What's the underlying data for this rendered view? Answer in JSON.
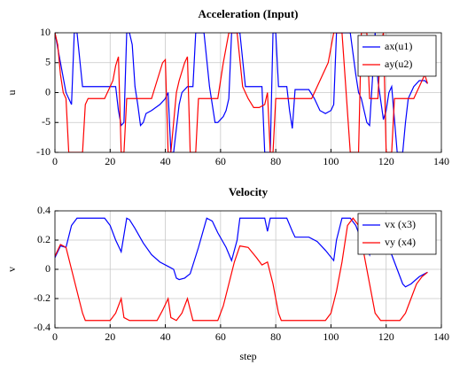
{
  "chart_data": [
    {
      "type": "line",
      "title": "Acceleration (Input)",
      "ylabel": "u",
      "xlim": [
        0,
        140
      ],
      "ylim": [
        -10,
        10
      ],
      "xticks": [
        0,
        20,
        40,
        60,
        80,
        100,
        120,
        140
      ],
      "yticks": [
        -10,
        -5,
        0,
        5,
        10
      ],
      "grid": true,
      "legend": "upper right",
      "series": [
        {
          "name": "ax(u1)",
          "color": "#0000ff",
          "x": [
            0,
            2,
            4,
            6,
            7,
            8,
            10,
            22,
            23,
            24,
            25,
            26,
            27,
            28,
            29,
            30,
            31,
            32,
            33,
            35,
            38,
            40,
            41,
            42,
            43,
            45,
            46,
            48,
            50,
            51,
            54,
            56,
            57,
            58,
            59,
            61,
            62,
            63,
            64,
            67,
            69,
            75,
            76,
            78,
            79,
            80,
            81,
            84,
            85,
            86,
            87,
            92,
            94,
            96,
            98,
            100,
            101,
            102,
            107,
            109,
            110,
            111,
            113,
            114,
            115,
            116,
            117,
            119,
            120,
            121,
            122,
            124,
            126,
            127,
            128,
            130,
            132,
            134,
            135
          ],
          "values": [
            10,
            5,
            0,
            -2,
            10,
            10,
            1,
            1,
            -3,
            -5.5,
            -5,
            10,
            10,
            8,
            1,
            -2,
            -5.5,
            -5,
            -3.5,
            -3,
            -2,
            -1,
            0,
            -10,
            -10,
            -2,
            0,
            1,
            1,
            10,
            10,
            1,
            -2,
            -5,
            -5,
            -4,
            -3,
            -1,
            10,
            10,
            1,
            1,
            -10,
            -10,
            10,
            10,
            1,
            1,
            -3,
            -6,
            0.5,
            0.5,
            -1,
            -3,
            -3.5,
            -3,
            -2,
            10,
            10,
            3,
            0,
            -1,
            -5,
            -5.5,
            2,
            10,
            2,
            -4.5,
            -3,
            0,
            1,
            -10,
            -10,
            -5,
            -1,
            1,
            2,
            2,
            1.5
          ]
        },
        {
          "name": "ay(u2)",
          "color": "#ff0000",
          "x": [
            0,
            1,
            2,
            3,
            4,
            5,
            10,
            11,
            12,
            18,
            19,
            20,
            21,
            22,
            23,
            24,
            25,
            26,
            35,
            37,
            39,
            40,
            41,
            42,
            43,
            44,
            45,
            47,
            48,
            49,
            51,
            52,
            59,
            61,
            63,
            66,
            68,
            70,
            72,
            74,
            76,
            77,
            78,
            79,
            80,
            93,
            95,
            97,
            99,
            101,
            104,
            107,
            110,
            111,
            113,
            114,
            117,
            118,
            119,
            120,
            122,
            123,
            130,
            132,
            134,
            135
          ],
          "values": [
            10,
            8,
            3,
            0,
            -1,
            -10,
            -10,
            -2,
            -1,
            -1,
            0,
            1,
            2,
            4.5,
            6,
            -10,
            -10,
            -1,
            -1,
            2,
            5,
            5.5,
            -10,
            -10,
            -5,
            0,
            2,
            5,
            6,
            -10,
            -10,
            -1,
            -1,
            5,
            10,
            10,
            1,
            -1,
            -2.5,
            -2.5,
            -2,
            0,
            -10,
            -10,
            -1,
            -1,
            1,
            3,
            5,
            10,
            10,
            -10,
            -10,
            10,
            10,
            -1,
            -1,
            8,
            10,
            -10,
            -10,
            -1,
            -1,
            1,
            3,
            1.5
          ]
        }
      ]
    },
    {
      "type": "line",
      "title": "Velocity",
      "xlabel": "step",
      "ylabel": "v",
      "xlim": [
        0,
        140
      ],
      "ylim": [
        -0.4,
        0.4
      ],
      "xticks": [
        0,
        20,
        40,
        60,
        80,
        100,
        120,
        140
      ],
      "yticks": [
        -0.4,
        -0.2,
        0,
        0.2,
        0.4
      ],
      "grid": true,
      "legend": "upper right",
      "series": [
        {
          "name": "vx (x3)",
          "color": "#0000ff",
          "x": [
            0,
            2,
            4,
            6,
            8,
            18,
            20,
            22,
            24,
            26,
            27,
            29,
            32,
            35,
            38,
            41,
            43,
            44,
            45,
            47,
            49,
            52,
            55,
            57,
            59,
            62,
            64,
            66,
            67,
            76,
            77,
            78,
            84,
            86,
            87,
            92,
            95,
            98,
            101,
            102,
            104,
            107,
            109,
            110,
            112,
            114,
            116,
            117,
            120,
            122,
            124,
            126,
            127,
            129,
            132,
            135
          ],
          "values": [
            0.08,
            0.16,
            0.15,
            0.3,
            0.35,
            0.35,
            0.3,
            0.2,
            0.12,
            0.35,
            0.34,
            0.28,
            0.18,
            0.1,
            0.05,
            0.02,
            0,
            -0.06,
            -0.07,
            -0.06,
            -0.03,
            0.15,
            0.35,
            0.33,
            0.25,
            0.15,
            0.06,
            0.2,
            0.35,
            0.35,
            0.26,
            0.35,
            0.35,
            0.26,
            0.22,
            0.22,
            0.19,
            0.13,
            0.06,
            0.2,
            0.35,
            0.35,
            0.3,
            0.25,
            0.2,
            0.1,
            0.35,
            0.3,
            0.2,
            0.1,
            0,
            -0.1,
            -0.12,
            -0.1,
            -0.05,
            -0.02
          ]
        },
        {
          "name": "vy (x4)",
          "color": "#ff0000",
          "x": [
            0,
            2,
            4,
            6,
            8,
            10,
            11,
            20,
            22,
            24,
            25,
            27,
            37,
            39,
            41,
            42,
            44,
            46,
            48,
            50,
            59,
            61,
            63,
            65,
            67,
            70,
            73,
            75,
            77,
            79,
            81,
            82,
            98,
            100,
            102,
            104,
            106,
            108,
            110,
            112,
            114,
            116,
            118,
            125,
            127,
            129,
            131,
            133,
            135
          ],
          "values": [
            0.09,
            0.17,
            0.15,
            0,
            -0.15,
            -0.3,
            -0.35,
            -0.35,
            -0.3,
            -0.2,
            -0.33,
            -0.35,
            -0.35,
            -0.28,
            -0.2,
            -0.33,
            -0.35,
            -0.3,
            -0.2,
            -0.35,
            -0.35,
            -0.25,
            -0.1,
            0.05,
            0.16,
            0.15,
            0.08,
            0.03,
            0.05,
            -0.1,
            -0.3,
            -0.35,
            -0.35,
            -0.3,
            -0.15,
            0.05,
            0.3,
            0.35,
            0.3,
            0.1,
            -0.1,
            -0.3,
            -0.35,
            -0.35,
            -0.3,
            -0.2,
            -0.1,
            -0.05,
            -0.02
          ]
        }
      ]
    }
  ]
}
